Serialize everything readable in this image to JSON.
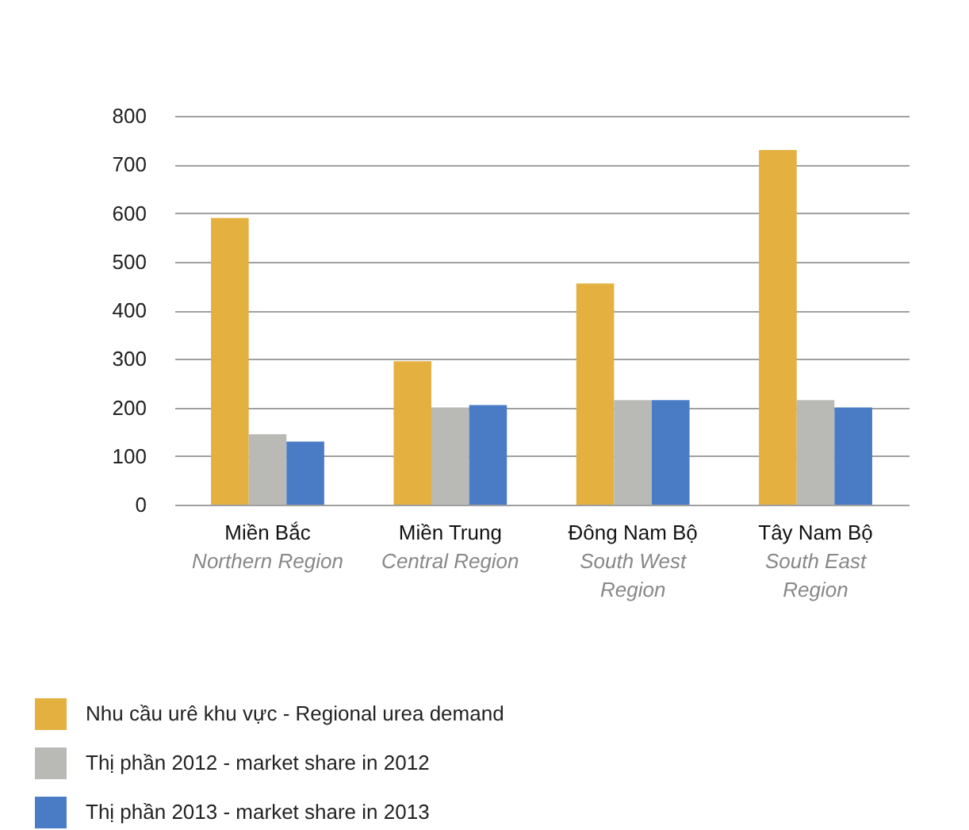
{
  "chart_data": {
    "type": "bar",
    "categories": [
      "Miền Bắc\nNorthern Region",
      "Miền Trung\nCentral Region",
      "Đông Nam Bộ\nSouth West\nRegion",
      "Tây Nam Bộ\nSouth East\nRegion"
    ],
    "series": [
      {
        "name": "Nhu cầu urê khu vực - Regional urea demand",
        "color": "#e4b040",
        "values": [
          590,
          295,
          455,
          730
        ]
      },
      {
        "name": "Thị phần 2012 - market share in 2012",
        "color": "#b9b9b6",
        "values": [
          145,
          200,
          215,
          215
        ]
      },
      {
        "name": "Thị phần 2013 - market share in 2013",
        "color": "#4a7cc6",
        "values": [
          130,
          205,
          215,
          200
        ]
      }
    ],
    "ylim": [
      0,
      800
    ],
    "yticks": [
      0,
      100,
      200,
      300,
      400,
      500,
      600,
      700,
      800
    ],
    "grid": "y",
    "legend": "bottom left"
  }
}
